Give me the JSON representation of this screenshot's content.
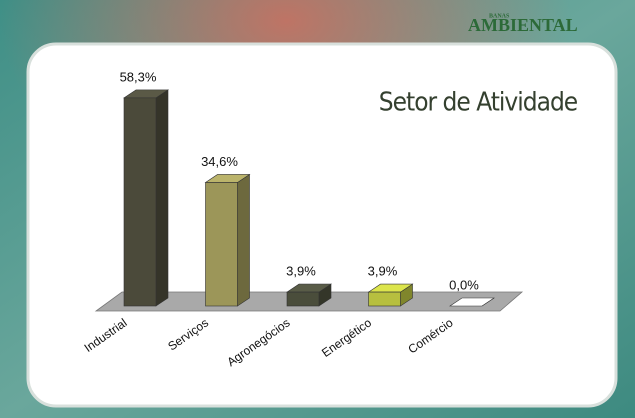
{
  "header": {
    "brand_small": "BANAS",
    "brand": "AMBIENTAL"
  },
  "chart_data": {
    "type": "bar3d",
    "title": "Setor de Atividade",
    "categories": [
      "Industrial",
      "Serviços",
      "Agronegócios",
      "Energético",
      "Comércio"
    ],
    "values": [
      58.3,
      34.6,
      3.9,
      3.9,
      0.0
    ],
    "value_labels": [
      "58,3%",
      "34,6%",
      "3,9%",
      "3,9%",
      "0,0%"
    ],
    "colors": [
      "#4b4a3a",
      "#9c9659",
      "#4a4d3b",
      "#b7bf3f",
      "#d6e6d6"
    ]
  }
}
